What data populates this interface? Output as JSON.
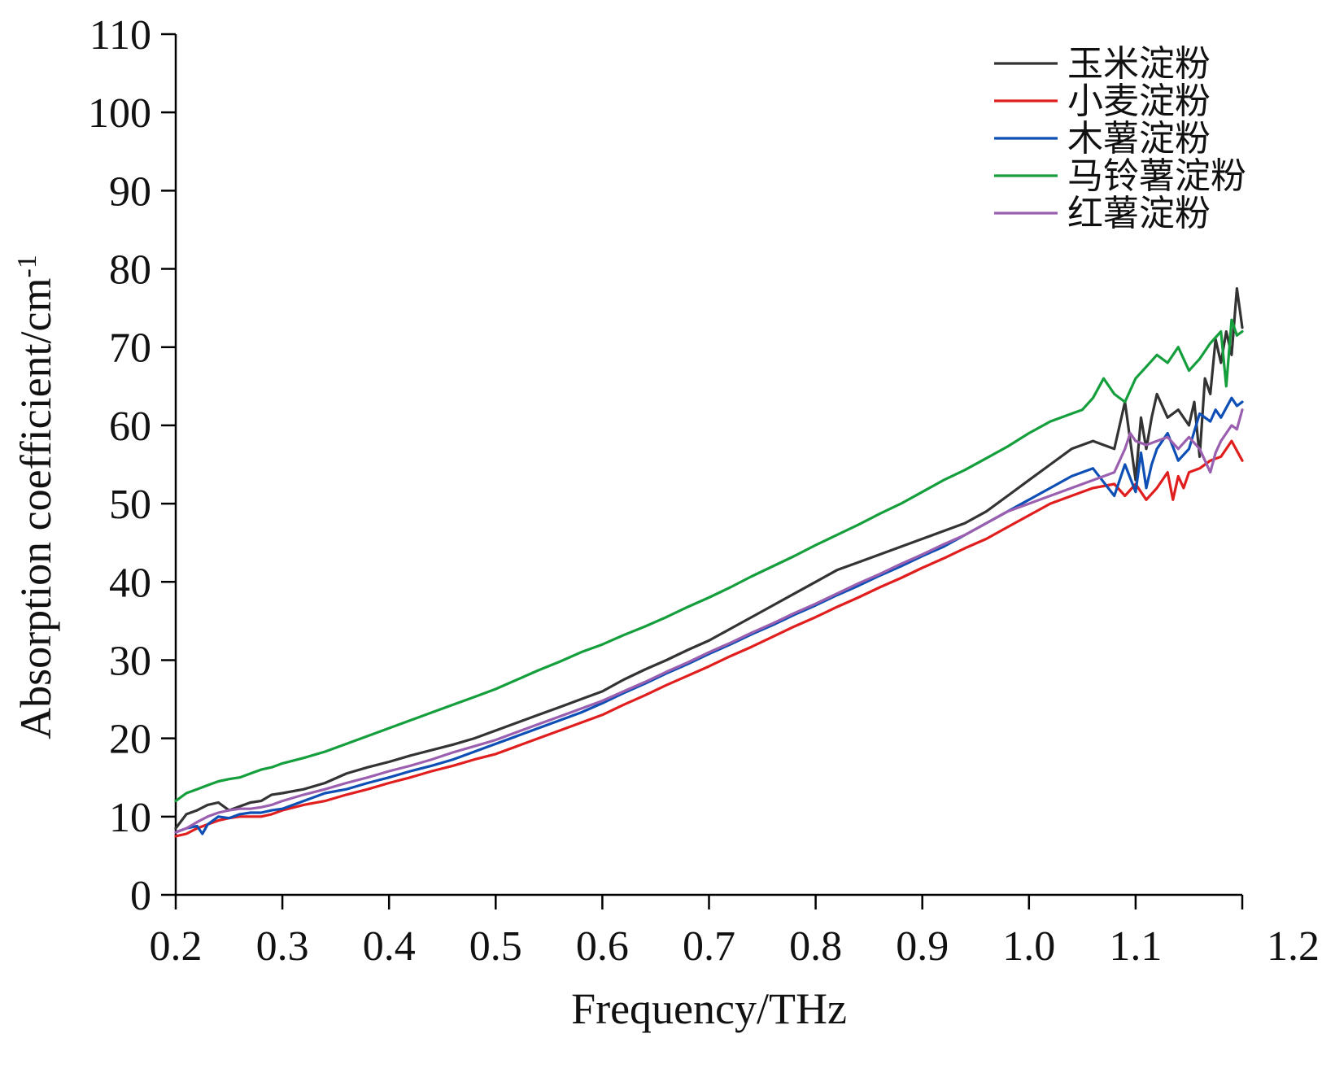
{
  "chart_data": {
    "type": "line",
    "xlabel": "Frequency/THz",
    "ylabel_main": "Absorption coefficient/cm",
    "ylabel_sup": "-1",
    "xlim": [
      0.2,
      1.2
    ],
    "ylim": [
      0,
      110
    ],
    "x_ticks": [
      "0.2",
      "0.3",
      "0.4",
      "0.5",
      "0.6",
      "0.7",
      "0.8",
      "0.9",
      "1.0",
      "1.1",
      "1.2"
    ],
    "y_ticks": [
      "0",
      "10",
      "20",
      "30",
      "40",
      "50",
      "60",
      "70",
      "80",
      "90",
      "100",
      "110"
    ],
    "legend_position": "top-right",
    "grid": false,
    "series": [
      {
        "name": "玉米淀粉",
        "color": "#333333",
        "x": [
          0.2,
          0.21,
          0.22,
          0.23,
          0.24,
          0.25,
          0.26,
          0.27,
          0.28,
          0.29,
          0.3,
          0.32,
          0.34,
          0.36,
          0.38,
          0.4,
          0.42,
          0.44,
          0.46,
          0.48,
          0.5,
          0.52,
          0.54,
          0.56,
          0.58,
          0.6,
          0.62,
          0.64,
          0.66,
          0.68,
          0.7,
          0.72,
          0.74,
          0.76,
          0.78,
          0.8,
          0.82,
          0.84,
          0.86,
          0.88,
          0.9,
          0.92,
          0.94,
          0.96,
          0.98,
          1.0,
          1.02,
          1.04,
          1.06,
          1.07,
          1.08,
          1.09,
          1.1,
          1.105,
          1.11,
          1.115,
          1.12,
          1.13,
          1.14,
          1.15,
          1.155,
          1.16,
          1.165,
          1.17,
          1.175,
          1.18,
          1.185,
          1.19,
          1.195,
          1.2
        ],
        "y": [
          8.5,
          10.3,
          10.8,
          11.5,
          11.8,
          10.8,
          11.3,
          11.8,
          12.0,
          12.8,
          13.0,
          13.5,
          14.3,
          15.5,
          16.3,
          17.0,
          17.8,
          18.5,
          19.2,
          20.0,
          21.0,
          22.0,
          23.0,
          24.0,
          25.0,
          26.0,
          27.5,
          28.8,
          30.0,
          31.3,
          32.5,
          34.0,
          35.5,
          37.0,
          38.5,
          40.0,
          41.5,
          42.5,
          43.5,
          44.5,
          45.5,
          46.5,
          47.5,
          49.0,
          51.0,
          53.0,
          55.0,
          57.0,
          58.0,
          57.5,
          57.0,
          63.0,
          53.0,
          61.0,
          57.0,
          61.0,
          64.0,
          61.0,
          62.0,
          60.0,
          63.0,
          56.0,
          66.0,
          64.0,
          71.0,
          68.0,
          72.0,
          69.0,
          77.5,
          72.5
        ]
      },
      {
        "name": "小麦淀粉",
        "color": "#e01e1e",
        "x": [
          0.2,
          0.21,
          0.22,
          0.23,
          0.24,
          0.25,
          0.26,
          0.27,
          0.28,
          0.29,
          0.3,
          0.32,
          0.34,
          0.36,
          0.38,
          0.4,
          0.42,
          0.44,
          0.46,
          0.48,
          0.5,
          0.52,
          0.54,
          0.56,
          0.58,
          0.6,
          0.62,
          0.64,
          0.66,
          0.68,
          0.7,
          0.72,
          0.74,
          0.76,
          0.78,
          0.8,
          0.82,
          0.84,
          0.86,
          0.88,
          0.9,
          0.92,
          0.94,
          0.96,
          0.98,
          1.0,
          1.02,
          1.04,
          1.06,
          1.08,
          1.09,
          1.1,
          1.11,
          1.12,
          1.13,
          1.135,
          1.14,
          1.145,
          1.15,
          1.16,
          1.17,
          1.18,
          1.19,
          1.2
        ],
        "y": [
          7.5,
          7.8,
          8.5,
          9.0,
          9.5,
          9.8,
          10.0,
          10.0,
          10.0,
          10.3,
          10.8,
          11.5,
          12.0,
          12.8,
          13.5,
          14.3,
          15.0,
          15.8,
          16.5,
          17.3,
          18.0,
          19.0,
          20.0,
          21.0,
          22.0,
          23.0,
          24.3,
          25.5,
          26.8,
          28.0,
          29.2,
          30.5,
          31.7,
          33.0,
          34.3,
          35.5,
          36.8,
          38.0,
          39.3,
          40.5,
          41.8,
          43.0,
          44.3,
          45.5,
          47.0,
          48.5,
          50.0,
          51.0,
          52.0,
          52.5,
          51.0,
          52.5,
          50.5,
          52.0,
          54.0,
          50.5,
          53.5,
          52.0,
          54.0,
          54.5,
          55.5,
          56.0,
          58.0,
          55.5
        ]
      },
      {
        "name": "木薯淀粉",
        "color": "#0d4fb5",
        "x": [
          0.2,
          0.21,
          0.22,
          0.225,
          0.23,
          0.24,
          0.25,
          0.26,
          0.27,
          0.28,
          0.29,
          0.3,
          0.32,
          0.34,
          0.36,
          0.38,
          0.4,
          0.42,
          0.44,
          0.46,
          0.48,
          0.5,
          0.52,
          0.54,
          0.56,
          0.58,
          0.6,
          0.62,
          0.64,
          0.66,
          0.68,
          0.7,
          0.72,
          0.74,
          0.76,
          0.78,
          0.8,
          0.82,
          0.84,
          0.86,
          0.88,
          0.9,
          0.92,
          0.94,
          0.96,
          0.98,
          1.0,
          1.02,
          1.04,
          1.06,
          1.08,
          1.09,
          1.1,
          1.105,
          1.11,
          1.115,
          1.12,
          1.13,
          1.14,
          1.15,
          1.16,
          1.17,
          1.175,
          1.18,
          1.19,
          1.195,
          1.2
        ],
        "y": [
          8.0,
          8.5,
          8.8,
          7.8,
          9.0,
          10.0,
          9.8,
          10.3,
          10.5,
          10.5,
          10.8,
          11.0,
          12.0,
          13.0,
          13.5,
          14.3,
          15.0,
          15.8,
          16.5,
          17.3,
          18.3,
          19.3,
          20.3,
          21.3,
          22.3,
          23.3,
          24.5,
          25.8,
          27.0,
          28.3,
          29.5,
          30.8,
          32.0,
          33.3,
          34.5,
          35.8,
          37.0,
          38.3,
          39.5,
          40.8,
          42.0,
          43.3,
          44.5,
          46.0,
          47.5,
          49.0,
          50.5,
          52.0,
          53.5,
          54.5,
          51.0,
          55.0,
          51.5,
          56.5,
          52.0,
          55.0,
          57.0,
          59.0,
          55.5,
          57.0,
          61.5,
          60.5,
          62.0,
          61.0,
          63.5,
          62.5,
          63.0
        ]
      },
      {
        "name": "马铃薯淀粉",
        "color": "#159e3c",
        "x": [
          0.2,
          0.21,
          0.22,
          0.23,
          0.24,
          0.25,
          0.26,
          0.27,
          0.28,
          0.29,
          0.3,
          0.32,
          0.34,
          0.36,
          0.38,
          0.4,
          0.42,
          0.44,
          0.46,
          0.48,
          0.5,
          0.52,
          0.54,
          0.56,
          0.58,
          0.6,
          0.62,
          0.64,
          0.66,
          0.68,
          0.7,
          0.72,
          0.74,
          0.76,
          0.78,
          0.8,
          0.82,
          0.84,
          0.86,
          0.88,
          0.9,
          0.92,
          0.94,
          0.96,
          0.98,
          1.0,
          1.02,
          1.04,
          1.05,
          1.06,
          1.07,
          1.08,
          1.09,
          1.1,
          1.11,
          1.12,
          1.13,
          1.14,
          1.15,
          1.16,
          1.17,
          1.18,
          1.185,
          1.19,
          1.195,
          1.2
        ],
        "y": [
          12.0,
          13.0,
          13.5,
          14.0,
          14.5,
          14.8,
          15.0,
          15.5,
          16.0,
          16.3,
          16.8,
          17.5,
          18.3,
          19.3,
          20.3,
          21.3,
          22.3,
          23.3,
          24.3,
          25.3,
          26.3,
          27.5,
          28.7,
          29.8,
          31.0,
          32.0,
          33.2,
          34.3,
          35.5,
          36.8,
          38.0,
          39.3,
          40.7,
          42.0,
          43.3,
          44.7,
          46.0,
          47.3,
          48.7,
          50.0,
          51.5,
          53.0,
          54.3,
          55.8,
          57.3,
          59.0,
          60.5,
          61.5,
          62.0,
          63.5,
          66.0,
          64.0,
          63.0,
          66.0,
          67.5,
          69.0,
          68.0,
          70.0,
          67.0,
          68.5,
          70.5,
          72.0,
          65.0,
          73.5,
          71.5,
          72.0
        ]
      },
      {
        "name": "红薯淀粉",
        "color": "#9b5fb0",
        "x": [
          0.2,
          0.21,
          0.22,
          0.23,
          0.24,
          0.25,
          0.26,
          0.27,
          0.28,
          0.29,
          0.3,
          0.32,
          0.34,
          0.36,
          0.38,
          0.4,
          0.42,
          0.44,
          0.46,
          0.48,
          0.5,
          0.52,
          0.54,
          0.56,
          0.58,
          0.6,
          0.62,
          0.64,
          0.66,
          0.68,
          0.7,
          0.72,
          0.74,
          0.76,
          0.78,
          0.8,
          0.82,
          0.84,
          0.86,
          0.88,
          0.9,
          0.92,
          0.94,
          0.96,
          0.98,
          1.0,
          1.02,
          1.04,
          1.06,
          1.08,
          1.09,
          1.095,
          1.1,
          1.11,
          1.12,
          1.13,
          1.14,
          1.15,
          1.16,
          1.17,
          1.175,
          1.18,
          1.19,
          1.195,
          1.2
        ],
        "y": [
          8.0,
          8.5,
          9.3,
          10.0,
          10.5,
          10.8,
          11.0,
          11.0,
          11.2,
          11.5,
          12.0,
          12.8,
          13.5,
          14.3,
          15.0,
          15.8,
          16.5,
          17.3,
          18.2,
          19.0,
          19.8,
          20.8,
          21.8,
          22.8,
          23.8,
          24.8,
          26.0,
          27.2,
          28.5,
          29.7,
          31.0,
          32.2,
          33.5,
          34.7,
          36.0,
          37.2,
          38.5,
          39.8,
          41.0,
          42.3,
          43.5,
          44.8,
          46.0,
          47.5,
          49.0,
          50.0,
          51.0,
          52.0,
          53.0,
          54.0,
          57.0,
          59.0,
          58.0,
          57.5,
          58.0,
          58.5,
          57.0,
          58.5,
          57.0,
          54.0,
          56.5,
          58.0,
          60.0,
          59.5,
          62.0
        ]
      }
    ]
  }
}
